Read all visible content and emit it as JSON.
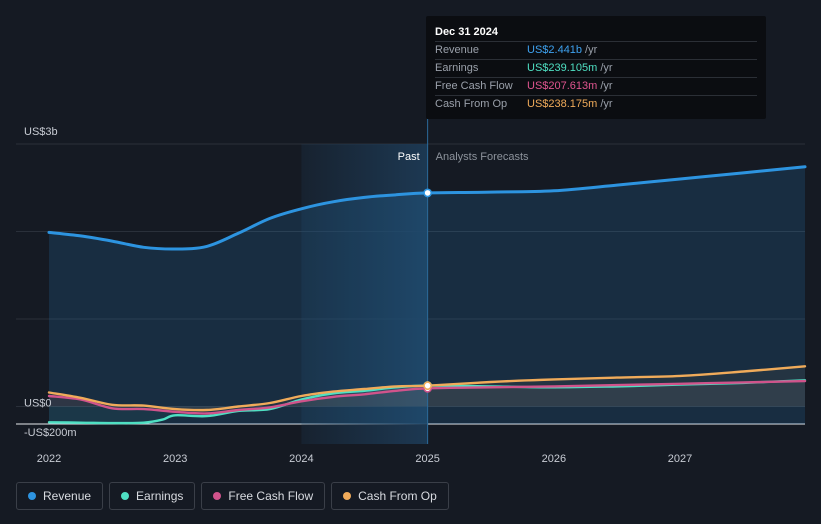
{
  "colors": {
    "background": "#151a23",
    "revenue": "#2d94e0",
    "earnings": "#4fe0c3",
    "free_cash_flow": "#d0538b",
    "cash_from_op": "#f0ab5a",
    "past_highlight": "#1d3a55"
  },
  "tooltip": {
    "date": "Dec 31 2024",
    "rows": [
      {
        "label": "Revenue",
        "value": "US$2.441b",
        "unit": "/yr",
        "color": "#3ea2f0"
      },
      {
        "label": "Earnings",
        "value": "US$239.105m",
        "unit": "/yr",
        "color": "#4fe0c3"
      },
      {
        "label": "Free Cash Flow",
        "value": "US$207.613m",
        "unit": "/yr",
        "color": "#e0558f"
      },
      {
        "label": "Cash From Op",
        "value": "US$238.175m",
        "unit": "/yr",
        "color": "#f0ab5a"
      }
    ]
  },
  "legend": [
    {
      "label": "Revenue",
      "color": "#2d94e0"
    },
    {
      "label": "Earnings",
      "color": "#4fe0c3"
    },
    {
      "label": "Free Cash Flow",
      "color": "#d0538b"
    },
    {
      "label": "Cash From Op",
      "color": "#f0ab5a"
    }
  ],
  "chart_data": {
    "type": "line",
    "y_unit": "US$ millions",
    "ylim": [
      -200,
      3000
    ],
    "y_ticks": [
      {
        "value": 3000,
        "label": "US$3b"
      },
      {
        "value": 0,
        "label": "US$0"
      },
      {
        "value": -200,
        "label": "-US$200m"
      }
    ],
    "gridlines": [
      3000,
      2000,
      1000,
      0,
      -200
    ],
    "xlim": [
      2022.0,
      2027.99
    ],
    "x_ticks": [
      {
        "value": 2022.0,
        "label": "2022"
      },
      {
        "value": 2023.0,
        "label": "2023"
      },
      {
        "value": 2024.0,
        "label": "2024"
      },
      {
        "value": 2025.0,
        "label": "2025"
      },
      {
        "value": 2026.0,
        "label": "2026"
      },
      {
        "value": 2027.0,
        "label": "2027"
      }
    ],
    "divider_x": 2025.0,
    "highlight_start_x": 2024.0,
    "past_label": "Past",
    "forecast_label": "Analysts Forecasts",
    "series": [
      {
        "name": "Revenue",
        "color": "#2d94e0",
        "points": [
          [
            2022.0,
            1990
          ],
          [
            2022.25,
            1950
          ],
          [
            2022.5,
            1890
          ],
          [
            2022.75,
            1820
          ],
          [
            2023.0,
            1800
          ],
          [
            2023.25,
            1830
          ],
          [
            2023.5,
            1980
          ],
          [
            2023.75,
            2150
          ],
          [
            2024.0,
            2260
          ],
          [
            2024.25,
            2340
          ],
          [
            2024.5,
            2390
          ],
          [
            2024.75,
            2420
          ],
          [
            2025.0,
            2441
          ],
          [
            2025.5,
            2450
          ],
          [
            2026.0,
            2465
          ],
          [
            2026.5,
            2530
          ],
          [
            2027.0,
            2600
          ],
          [
            2027.5,
            2670
          ],
          [
            2027.99,
            2740
          ]
        ]
      },
      {
        "name": "Earnings",
        "color": "#4fe0c3",
        "points": [
          [
            2022.0,
            -180
          ],
          [
            2022.25,
            -185
          ],
          [
            2022.5,
            -190
          ],
          [
            2022.75,
            -185
          ],
          [
            2022.9,
            -150
          ],
          [
            2023.0,
            -100
          ],
          [
            2023.25,
            -110
          ],
          [
            2023.5,
            -50
          ],
          [
            2023.75,
            -30
          ],
          [
            2024.0,
            80
          ],
          [
            2024.25,
            150
          ],
          [
            2024.5,
            180
          ],
          [
            2024.75,
            220
          ],
          [
            2025.0,
            239
          ],
          [
            2025.5,
            230
          ],
          [
            2026.0,
            220
          ],
          [
            2026.5,
            230
          ],
          [
            2027.0,
            250
          ],
          [
            2027.5,
            270
          ],
          [
            2027.99,
            300
          ]
        ]
      },
      {
        "name": "Free Cash Flow",
        "color": "#d0538b",
        "points": [
          [
            2022.0,
            120
          ],
          [
            2022.25,
            80
          ],
          [
            2022.5,
            -20
          ],
          [
            2022.75,
            -30
          ],
          [
            2023.0,
            -60
          ],
          [
            2023.25,
            -80
          ],
          [
            2023.5,
            -40
          ],
          [
            2023.75,
            -10
          ],
          [
            2024.0,
            60
          ],
          [
            2024.25,
            110
          ],
          [
            2024.5,
            140
          ],
          [
            2024.75,
            180
          ],
          [
            2025.0,
            208
          ],
          [
            2025.5,
            220
          ],
          [
            2026.0,
            230
          ],
          [
            2026.5,
            245
          ],
          [
            2027.0,
            260
          ],
          [
            2027.5,
            275
          ],
          [
            2027.99,
            290
          ]
        ]
      },
      {
        "name": "Cash From Op",
        "color": "#f0ab5a",
        "points": [
          [
            2022.0,
            160
          ],
          [
            2022.25,
            100
          ],
          [
            2022.5,
            20
          ],
          [
            2022.75,
            10
          ],
          [
            2023.0,
            -30
          ],
          [
            2023.25,
            -40
          ],
          [
            2023.5,
            0
          ],
          [
            2023.75,
            40
          ],
          [
            2024.0,
            120
          ],
          [
            2024.25,
            170
          ],
          [
            2024.5,
            200
          ],
          [
            2024.75,
            230
          ],
          [
            2025.0,
            238
          ],
          [
            2025.5,
            280
          ],
          [
            2026.0,
            310
          ],
          [
            2026.5,
            330
          ],
          [
            2027.0,
            350
          ],
          [
            2027.5,
            400
          ],
          [
            2027.99,
            460
          ]
        ]
      }
    ]
  }
}
